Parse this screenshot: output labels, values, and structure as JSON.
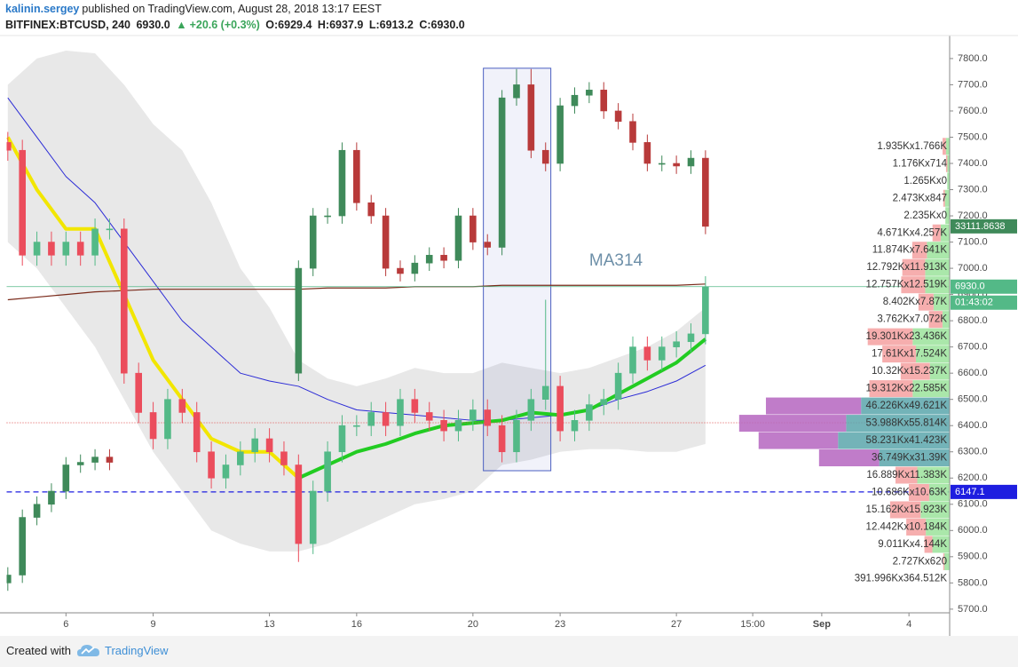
{
  "chart_data": {
    "type": "candlestick",
    "header": {
      "author": "kalinin.sergey",
      "published": "published on TradingView.com, August 28, 2018 13:17 EEST",
      "symbol": "BITFINEX:BTCUSD, 240",
      "last": "6930.0",
      "change_arrow": "▲",
      "change": "+20.6 (+0.3%)",
      "open": "O:6929.4",
      "high": "H:6937.9",
      "low": "L:6913.2",
      "close": "C:6930.0"
    },
    "annotation": "MA314",
    "footer": {
      "created": "Created with",
      "brand": "TradingView"
    },
    "xlim": [
      3.96,
      36.4
    ],
    "ylim": [
      5686,
      7881
    ],
    "xticks": [
      6,
      9,
      13,
      16,
      20,
      23,
      27,
      {
        "value": 29.625,
        "label": "15:00"
      },
      {
        "value": 32,
        "label": "Sep"
      },
      {
        "value": 35,
        "label": "4"
      }
    ],
    "yticks": [
      {
        "value": 5700,
        "label": "5700.0"
      },
      {
        "value": 5800,
        "label": "5800.0"
      },
      {
        "value": 5900,
        "label": "5900.0"
      },
      {
        "value": 6000,
        "label": "6000.0"
      },
      {
        "value": 6100,
        "label": "6100.0"
      },
      {
        "value": 6200,
        "label": "6200.0"
      },
      {
        "value": 6300,
        "label": "6300.0"
      },
      {
        "value": 6400,
        "label": "6400.0"
      },
      {
        "value": 6500,
        "label": "6500.0"
      },
      {
        "value": 6600,
        "label": "6600.0"
      },
      {
        "value": 6700,
        "label": "6700.0"
      },
      {
        "value": 6800,
        "label": "6800.0"
      },
      {
        "value": 6900,
        "label": "6900.0"
      },
      {
        "value": 7000,
        "label": "7000.0"
      },
      {
        "value": 7100,
        "label": "7100.0"
      },
      {
        "value": 7200,
        "label": "7200.0"
      },
      {
        "value": 7300,
        "label": "7300.0"
      },
      {
        "value": 7400,
        "label": "7400.0"
      },
      {
        "value": 7500,
        "label": "7500.0"
      },
      {
        "value": 7600,
        "label": "7600.0"
      },
      {
        "value": 7700,
        "label": "7700.0"
      },
      {
        "value": 7800,
        "label": "7800.0"
      }
    ],
    "x": [
      4,
      4.5,
      5,
      5.5,
      6,
      6.5,
      7,
      7.5,
      8,
      8.5,
      9,
      9.5,
      10,
      10.5,
      11,
      11.5,
      12,
      12.5,
      13,
      13.5,
      14,
      14.5,
      15,
      15.5,
      16,
      16.5,
      17,
      17.5,
      18,
      18.5,
      19,
      19.5,
      20,
      20.5,
      21,
      21.5,
      22,
      22.5,
      23,
      23.5,
      24,
      24.5,
      25,
      25.5,
      26,
      26.5,
      27,
      27.5,
      28
    ],
    "main": {
      "up_color": "#53b987",
      "down_color": "#eb4d5c",
      "open": [
        7480,
        7450,
        7050,
        7100,
        7050,
        7100,
        7050,
        7150,
        7150,
        6600,
        6450,
        6350,
        6500,
        6450,
        6300,
        6200,
        6250,
        6300,
        6350,
        6300,
        6250,
        5950,
        6150,
        6300,
        6400,
        6400,
        6450,
        6400,
        6500,
        6450,
        6420,
        6380,
        6420,
        6460,
        6400,
        6300,
        6420,
        6500,
        6550,
        6380,
        6420,
        6480,
        6500,
        6600,
        6700,
        6650,
        6700,
        6720,
        6750
      ],
      "high": [
        7520,
        7490,
        7140,
        7140,
        7140,
        7140,
        7190,
        7190,
        7190,
        6640,
        6490,
        6540,
        6540,
        6490,
        6340,
        6290,
        6340,
        6390,
        6390,
        6340,
        6290,
        6190,
        6340,
        6440,
        6440,
        6490,
        6490,
        6540,
        6540,
        6490,
        6460,
        6460,
        6500,
        6500,
        6440,
        6460,
        6540,
        6880,
        6590,
        6460,
        6520,
        6540,
        6640,
        6740,
        6740,
        6740,
        6760,
        6790,
        6970
      ],
      "low": [
        7410,
        7010,
        7010,
        7010,
        7010,
        7010,
        7010,
        7110,
        6560,
        6410,
        6310,
        6310,
        6410,
        6260,
        6160,
        6160,
        6210,
        6260,
        6260,
        6210,
        5880,
        5910,
        6110,
        6260,
        6360,
        6360,
        6360,
        6360,
        6410,
        6380,
        6340,
        6340,
        6380,
        6360,
        6260,
        6260,
        6380,
        6460,
        6340,
        6340,
        6380,
        6440,
        6460,
        6560,
        6610,
        6610,
        6660,
        6680,
        6710
      ],
      "close": [
        7450,
        7050,
        7100,
        7050,
        7100,
        7050,
        7150,
        7150,
        6600,
        6450,
        6350,
        6500,
        6450,
        6300,
        6200,
        6250,
        6300,
        6350,
        6300,
        6250,
        5950,
        6150,
        6300,
        6400,
        6400,
        6450,
        6400,
        6500,
        6450,
        6420,
        6380,
        6420,
        6460,
        6400,
        6300,
        6420,
        6500,
        6550,
        6380,
        6420,
        6480,
        6500,
        6600,
        6700,
        6650,
        6700,
        6720,
        6750,
        6930
      ]
    },
    "overlay": {
      "up_color": "#3f8a5a",
      "down_color": "#b83a3a",
      "last_label": "33111.8638",
      "open": [
        5800,
        5830,
        6050,
        6100,
        6150,
        6250,
        6260,
        6280,
        null,
        null,
        null,
        null,
        null,
        null,
        null,
        null,
        null,
        null,
        null,
        null,
        6600,
        7000,
        7200,
        7200,
        7450,
        7250,
        7200,
        7000,
        6980,
        7020,
        7050,
        7030,
        7200,
        7100,
        7080,
        7650,
        7700,
        7450,
        7400,
        7620,
        7660,
        7680,
        7600,
        7560,
        7480,
        7400,
        7400,
        7390,
        7420
      ],
      "high": [
        5860,
        6080,
        6130,
        6180,
        6280,
        6290,
        6310,
        6310,
        null,
        null,
        null,
        null,
        null,
        null,
        null,
        null,
        null,
        null,
        null,
        null,
        7030,
        7230,
        7230,
        7480,
        7480,
        7280,
        7230,
        7030,
        7050,
        7080,
        7080,
        7230,
        7230,
        7130,
        7680,
        7760,
        7760,
        7480,
        7650,
        7690,
        7710,
        7710,
        7630,
        7590,
        7510,
        7430,
        7430,
        7450,
        7450
      ],
      "low": [
        5770,
        5800,
        6020,
        6070,
        6120,
        6220,
        6230,
        6230,
        null,
        null,
        null,
        null,
        null,
        null,
        null,
        null,
        null,
        null,
        null,
        null,
        6570,
        6970,
        7170,
        7170,
        7220,
        7170,
        6970,
        6950,
        6950,
        6990,
        7000,
        7000,
        7070,
        7050,
        7050,
        7620,
        7420,
        7370,
        7370,
        7590,
        7630,
        7570,
        7530,
        7450,
        7370,
        7370,
        7360,
        7360,
        7130
      ],
      "close": [
        5830,
        6050,
        6100,
        6150,
        6250,
        6260,
        6280,
        6260,
        null,
        null,
        null,
        null,
        null,
        null,
        null,
        null,
        null,
        null,
        null,
        null,
        7000,
        7200,
        7200,
        7450,
        7250,
        7200,
        7000,
        6980,
        7020,
        7050,
        7030,
        7200,
        7100,
        7080,
        7650,
        7700,
        7450,
        7400,
        7620,
        7660,
        7680,
        7600,
        7560,
        7480,
        7400,
        7400,
        7390,
        7420,
        7160
      ]
    },
    "days": [
      4,
      5,
      6,
      7,
      8,
      9,
      10,
      11,
      12,
      13,
      14,
      15,
      16,
      17,
      18,
      19,
      20,
      21,
      22,
      23,
      24,
      25,
      26,
      27,
      28
    ],
    "band": {
      "color": "#e2e2e2",
      "upper": [
        7700,
        7800,
        7830,
        7820,
        7700,
        7550,
        7450,
        7250,
        7000,
        6850,
        6650,
        6580,
        6550,
        6580,
        6620,
        6600,
        6600,
        6640,
        6620,
        6600,
        6620,
        6660,
        6700,
        6760,
        6850
      ],
      "lower": [
        7100,
        7000,
        6850,
        6700,
        6500,
        6300,
        6150,
        6000,
        5950,
        5920,
        5920,
        5950,
        6000,
        6050,
        6100,
        6120,
        6150,
        6250,
        6270,
        6300,
        6310,
        6310,
        6300,
        6300,
        6330
      ]
    },
    "lines": [
      {
        "color": "#2b2bd6",
        "width": 1,
        "values": [
          7650,
          7500,
          7350,
          7250,
          7100,
          6950,
          6800,
          6700,
          6600,
          6570,
          6550,
          6500,
          6460,
          6450,
          6440,
          6430,
          6420,
          6420,
          6430,
          6440,
          6460,
          6500,
          6530,
          6570,
          6630
        ]
      },
      {
        "color": "#7a2a1a",
        "width": 1.2,
        "values": [
          6880,
          6890,
          6900,
          6910,
          6915,
          6920,
          6920,
          6920,
          6920,
          6920,
          6920,
          6925,
          6925,
          6925,
          6930,
          6930,
          6930,
          6935,
          6935,
          6935,
          6935,
          6935,
          6935,
          6935,
          6940
        ]
      },
      {
        "color": "#f2e600",
        "width": 4,
        "values": [
          7500,
          7300,
          7150,
          7150,
          6900,
          6650,
          6500,
          6350,
          6300,
          6300,
          6200,
          null,
          null,
          null,
          null,
          null,
          null,
          null,
          null,
          null,
          null,
          null,
          null,
          null,
          null
        ]
      },
      {
        "color": "#22cc22",
        "width": 4,
        "values": [
          null,
          null,
          null,
          null,
          null,
          null,
          null,
          null,
          null,
          null,
          6200,
          6250,
          6300,
          6330,
          6370,
          6400,
          6410,
          6420,
          6450,
          6440,
          6460,
          6520,
          6580,
          6640,
          6730
        ]
      }
    ],
    "highlight": {
      "x": [
        20.36,
        22.68
      ],
      "y": [
        6228,
        7763
      ],
      "color": "#4a5fc1"
    },
    "poc": 6411,
    "price_lines": [
      {
        "value": 6930,
        "label": "6930.0",
        "color": "#53b987",
        "dash": false
      },
      {
        "value": 6147.1,
        "label": "6147.1",
        "color": "#1e1ee0",
        "dash": true
      }
    ],
    "countdown": "01:43:02",
    "profile": {
      "up_color": "#9be39b",
      "down_color": "#f4a0a0",
      "va_up_color": "#5aa6ab",
      "va_down_color": "#b565c0",
      "rows": [
        {
          "label": "1.935Kx1.766K",
          "up": 1935,
          "down": 1766,
          "price": 7465,
          "value_area": false
        },
        {
          "label": "1.176Kx714",
          "up": 1176,
          "down": 714,
          "price": 7399,
          "value_area": false
        },
        {
          "label": "1.265Kx0",
          "up": 1265,
          "down": 0,
          "price": 7333,
          "value_area": false
        },
        {
          "label": "2.473Kx847",
          "up": 2473,
          "down": 847,
          "price": 7267,
          "value_area": false
        },
        {
          "label": "2.235Kx0",
          "up": 2235,
          "down": 0,
          "price": 7201,
          "value_area": false
        },
        {
          "label": "4.671Kx4.257K",
          "up": 4671,
          "down": 4257,
          "price": 7135,
          "value_area": false
        },
        {
          "label": "11.874Kx7.641K",
          "up": 11874,
          "down": 7641,
          "price": 7069,
          "value_area": false
        },
        {
          "label": "12.792Kx11.913K",
          "up": 12792,
          "down": 11913,
          "price": 7003,
          "value_area": false
        },
        {
          "label": "12.757Kx12.519K",
          "up": 12757,
          "down": 12519,
          "price": 6937,
          "value_area": false
        },
        {
          "label": "8.402Kx7.87K",
          "up": 8402,
          "down": 7870,
          "price": 6871,
          "value_area": false
        },
        {
          "label": "3.762Kx7.072K",
          "up": 3762,
          "down": 7072,
          "price": 6805,
          "value_area": false
        },
        {
          "label": "19.301Kx23.436K",
          "up": 19301,
          "down": 23436,
          "price": 6739,
          "value_area": false
        },
        {
          "label": "17.61Kx17.524K",
          "up": 17610,
          "down": 17524,
          "price": 6673,
          "value_area": false
        },
        {
          "label": "10.32Kx15.237K",
          "up": 10320,
          "down": 15237,
          "price": 6607,
          "value_area": false
        },
        {
          "label": "19.312Kx22.585K",
          "up": 19312,
          "down": 22585,
          "price": 6541,
          "value_area": false
        },
        {
          "label": "46.226Kx49.621K",
          "up": 46226,
          "down": 49621,
          "price": 6475,
          "value_area": true
        },
        {
          "label": "53.988Kx55.814K",
          "up": 53988,
          "down": 55814,
          "price": 6409,
          "value_area": true
        },
        {
          "label": "58.231Kx41.423K",
          "up": 58231,
          "down": 41423,
          "price": 6343,
          "value_area": true
        },
        {
          "label": "36.749Kx31.39K",
          "up": 36749,
          "down": 31390,
          "price": 6277,
          "value_area": true
        },
        {
          "label": "16.889Kx11.383K",
          "up": 16889,
          "down": 11383,
          "price": 6211,
          "value_area": false
        },
        {
          "label": "10.686Kx10.63K",
          "up": 10686,
          "down": 10630,
          "price": 6145,
          "value_area": false
        },
        {
          "label": "15.162Kx15.923K",
          "up": 15162,
          "down": 15923,
          "price": 6079,
          "value_area": false
        },
        {
          "label": "12.442Kx10.184K",
          "up": 12442,
          "down": 10184,
          "price": 6013,
          "value_area": false
        },
        {
          "label": "9.011Kx4.144K",
          "up": 9011,
          "down": 4144,
          "price": 5947,
          "value_area": false
        },
        {
          "label": "2.727Kx620",
          "up": 2727,
          "down": 620,
          "price": 5881,
          "value_area": false
        }
      ],
      "total_label": "391.996Kx364.512K"
    }
  }
}
